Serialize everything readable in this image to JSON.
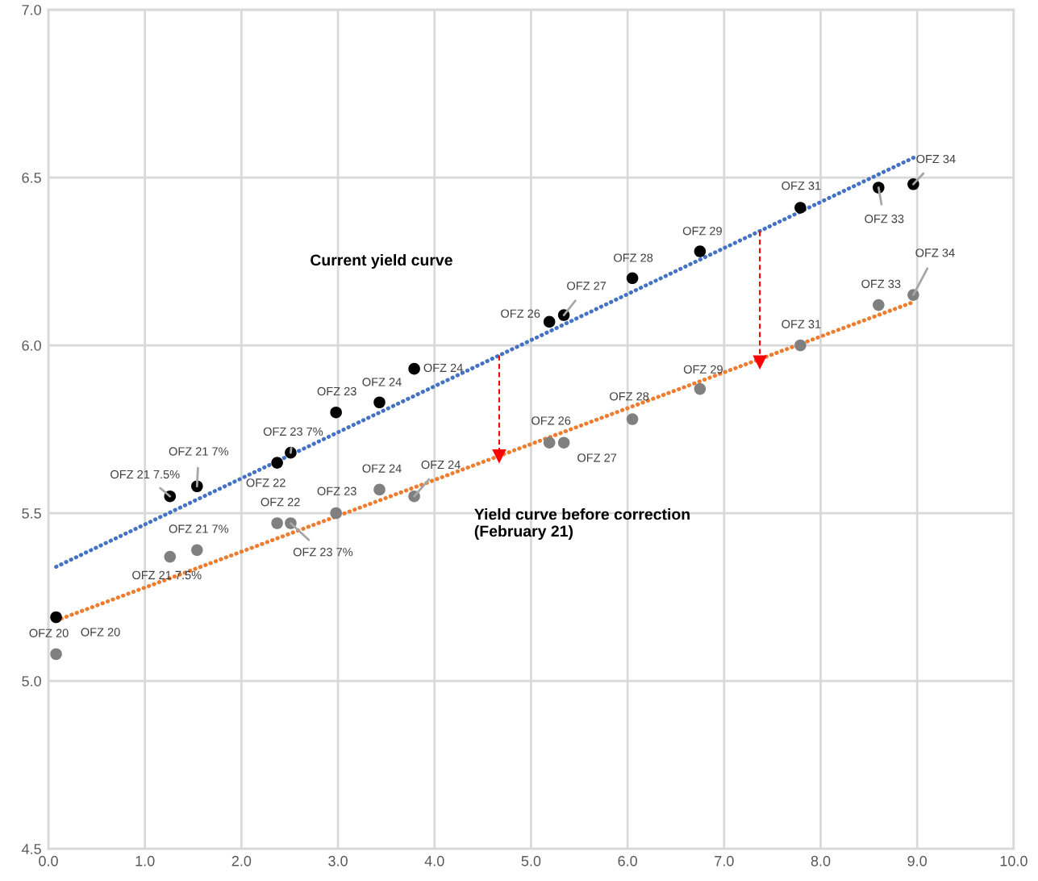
{
  "chart_data": {
    "type": "scatter",
    "xlim": [
      0,
      10
    ],
    "ylim": [
      4.5,
      7.0
    ],
    "xticks": [
      {
        "value": 0,
        "label": "0.0"
      },
      {
        "value": 1,
        "label": "1.0"
      },
      {
        "value": 2,
        "label": "2.0"
      },
      {
        "value": 3,
        "label": "3.0"
      },
      {
        "value": 4,
        "label": "4.0"
      },
      {
        "value": 5,
        "label": "5.0"
      },
      {
        "value": 6,
        "label": "6.0"
      },
      {
        "value": 7,
        "label": "7.0"
      },
      {
        "value": 8,
        "label": "8.0"
      },
      {
        "value": 9,
        "label": "9.0"
      },
      {
        "value": 10,
        "label": "10.0"
      }
    ],
    "yticks": [
      {
        "value": 4.5,
        "label": "4.5"
      },
      {
        "value": 5,
        "label": "5.0"
      },
      {
        "value": 5.5,
        "label": "5.5"
      },
      {
        "value": 6,
        "label": "6.0"
      },
      {
        "value": 6.5,
        "label": "6.5"
      },
      {
        "value": 7,
        "label": "7.0"
      }
    ],
    "grid": true,
    "marker": "circle",
    "series": [
      {
        "type": "line",
        "color": "#4472c4",
        "line_style": "dotted",
        "marker": "none",
        "x": [
          0.08,
          8.97
        ],
        "values": [
          5.34,
          6.56
        ]
      },
      {
        "type": "line",
        "color": "#ed7d31",
        "line_style": "dotted",
        "marker": "none",
        "x": [
          0.08,
          8.97
        ],
        "values": [
          5.18,
          6.13
        ]
      },
      {
        "type": "line",
        "color": "#ff0000",
        "line_style": "dashed",
        "marker": "triangle",
        "x": [
          4.67,
          4.67
        ],
        "values": [
          5.97,
          5.67
        ]
      },
      {
        "type": "line",
        "color": "#ff0000",
        "line_style": "dashed",
        "marker": "triangle",
        "x": [
          7.37,
          7.37
        ],
        "values": [
          6.34,
          5.95
        ]
      },
      {
        "color": "#000000",
        "x": [
          0.08,
          1.26,
          1.54,
          2.37,
          2.51,
          2.98,
          3.43,
          3.79,
          5.19,
          5.34,
          6.05,
          6.75,
          7.79,
          8.6,
          8.96
        ],
        "values": [
          5.19,
          5.55,
          5.58,
          5.65,
          5.68,
          5.8,
          5.83,
          5.93,
          6.07,
          6.09,
          6.2,
          6.28,
          6.41,
          6.47,
          6.48
        ]
      },
      {
        "color": "#808080",
        "x": [
          0.08,
          1.26,
          1.54,
          2.37,
          2.51,
          2.98,
          3.43,
          3.79,
          5.19,
          5.34,
          6.05,
          6.75,
          7.79,
          8.6,
          8.96
        ],
        "values": [
          5.08,
          5.37,
          5.39,
          5.47,
          5.47,
          5.5,
          5.57,
          5.55,
          5.71,
          5.71,
          5.78,
          5.87,
          6.0,
          6.12,
          6.15
        ]
      }
    ],
    "annotations": [
      {
        "text": "OFZ 20",
        "x": 0.08,
        "y": 5.19
      },
      {
        "text": "OFZ 21 7.5%",
        "x": 1.26,
        "y": 5.55
      },
      {
        "text": "OFZ 21 7%",
        "x": 1.54,
        "y": 5.58
      },
      {
        "text": "OFZ 22",
        "x": 2.37,
        "y": 5.65
      },
      {
        "text": "OFZ 23 7%",
        "x": 2.51,
        "y": 5.68
      },
      {
        "text": "OFZ 23",
        "x": 2.98,
        "y": 5.8
      },
      {
        "text": "OFZ 24",
        "x": 3.43,
        "y": 5.83
      },
      {
        "text": "OFZ 24",
        "x": 3.79,
        "y": 5.93
      },
      {
        "text": "OFZ 26",
        "x": 5.19,
        "y": 6.07
      },
      {
        "text": "OFZ 27",
        "x": 5.34,
        "y": 6.09
      },
      {
        "text": "OFZ 28",
        "x": 6.05,
        "y": 6.2
      },
      {
        "text": "OFZ 29",
        "x": 6.75,
        "y": 6.28
      },
      {
        "text": "OFZ 31",
        "x": 7.79,
        "y": 6.41
      },
      {
        "text": "OFZ 33",
        "x": 8.6,
        "y": 6.47
      },
      {
        "text": "OFZ 34",
        "x": 8.96,
        "y": 6.48
      },
      {
        "text": "OFZ 20",
        "x": 0.08,
        "y": 5.08
      },
      {
        "text": "OFZ 21 7.5%",
        "x": 1.26,
        "y": 5.37
      },
      {
        "text": "OFZ 21 7%",
        "x": 1.54,
        "y": 5.39
      },
      {
        "text": "OFZ 22",
        "x": 2.37,
        "y": 5.47
      },
      {
        "text": "OFZ 23 7%",
        "x": 2.51,
        "y": 5.47
      },
      {
        "text": "OFZ 23",
        "x": 2.98,
        "y": 5.5
      },
      {
        "text": "OFZ 24",
        "x": 3.43,
        "y": 5.57
      },
      {
        "text": "OFZ 24",
        "x": 3.79,
        "y": 5.55
      },
      {
        "text": "OFZ 26",
        "x": 5.19,
        "y": 5.71
      },
      {
        "text": "OFZ 27",
        "x": 5.34,
        "y": 5.71
      },
      {
        "text": "OFZ 28",
        "x": 6.05,
        "y": 5.78
      },
      {
        "text": "OFZ 29",
        "x": 6.75,
        "y": 5.87
      },
      {
        "text": "OFZ 31",
        "x": 7.79,
        "y": 6.0
      },
      {
        "text": "OFZ 33",
        "x": 8.6,
        "y": 6.12
      },
      {
        "text": "OFZ 34",
        "x": 8.96,
        "y": 6.15
      },
      "Current yield curve",
      "Yield curve before correction\n(February 21)"
    ]
  }
}
